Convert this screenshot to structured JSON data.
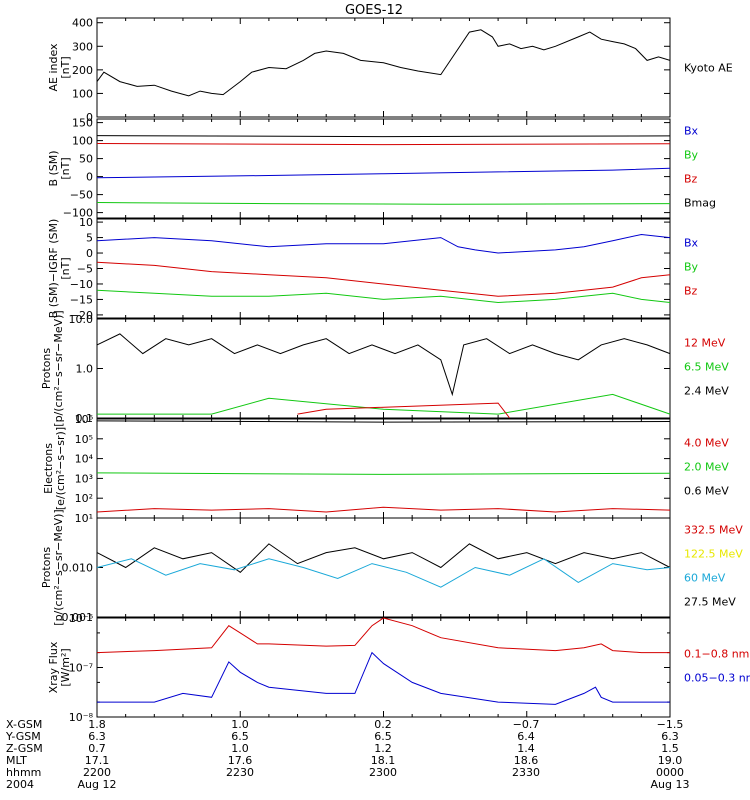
{
  "title": "GOES-12",
  "colors": {
    "black": "#000000",
    "red": "#d40000",
    "green": "#12c812",
    "blue": "#0000d0",
    "cyan": "#1aa8d8",
    "yellow": "#e8e800"
  },
  "chart_data": [
    {
      "type": "line",
      "ylabel": "AE index\n[nT]",
      "ylim": [
        0,
        420
      ],
      "scale": "linear",
      "yticks": [
        0,
        100,
        200,
        300,
        400
      ],
      "ytick_labels": [
        "0",
        "100",
        "200",
        "300",
        "400"
      ],
      "legend": [
        {
          "name": "Kyoto AE",
          "color": "#000000"
        }
      ],
      "series": [
        {
          "name": "Kyoto AE",
          "color": "#000000",
          "x": [
            0,
            0.012,
            0.04,
            0.07,
            0.1,
            0.13,
            0.16,
            0.18,
            0.2,
            0.22,
            0.25,
            0.27,
            0.3,
            0.33,
            0.36,
            0.38,
            0.4,
            0.43,
            0.46,
            0.5,
            0.53,
            0.56,
            0.6,
            0.65,
            0.67,
            0.69,
            0.7,
            0.72,
            0.74,
            0.76,
            0.78,
            0.8,
            0.84,
            0.86,
            0.88,
            0.9,
            0.92,
            0.94,
            0.96,
            0.98,
            1
          ],
          "y": [
            150,
            190,
            150,
            130,
            135,
            110,
            90,
            110,
            100,
            95,
            150,
            190,
            210,
            205,
            240,
            270,
            280,
            270,
            240,
            230,
            210,
            195,
            180,
            360,
            370,
            340,
            300,
            310,
            290,
            300,
            285,
            300,
            340,
            360,
            330,
            320,
            310,
            290,
            240,
            255,
            240
          ]
        }
      ]
    },
    {
      "type": "line",
      "ylabel": "B (SM)\n[nT]",
      "ylim": [
        -115,
        160
      ],
      "scale": "linear",
      "yticks": [
        -100,
        -50,
        0,
        50,
        100,
        150
      ],
      "ytick_labels": [
        "−100",
        "−50",
        "0",
        "50",
        "100",
        "150"
      ],
      "legend": [
        {
          "name": "Bx",
          "color": "#0000d0"
        },
        {
          "name": "By",
          "color": "#12c812"
        },
        {
          "name": "Bz",
          "color": "#d40000"
        },
        {
          "name": "Bmag",
          "color": "#000000"
        }
      ],
      "series": [
        {
          "name": "Bmag",
          "color": "#000000",
          "x": [
            0,
            0.5,
            1
          ],
          "y": [
            114,
            111,
            113
          ]
        },
        {
          "name": "Bz",
          "color": "#d40000",
          "x": [
            0,
            0.5,
            1
          ],
          "y": [
            92,
            89,
            91
          ]
        },
        {
          "name": "Bx",
          "color": "#0000d0",
          "x": [
            0,
            0.1,
            0.3,
            0.5,
            0.7,
            0.9,
            1
          ],
          "y": [
            -3,
            -1,
            3,
            8,
            13,
            18,
            23
          ]
        },
        {
          "name": "By",
          "color": "#12c812",
          "x": [
            0,
            0.3,
            0.6,
            1
          ],
          "y": [
            -72,
            -75,
            -77,
            -75
          ]
        }
      ]
    },
    {
      "type": "line",
      "ylabel": "B (SM)−IGRF (SM)\n[nT]",
      "ylim": [
        -21,
        11
      ],
      "scale": "linear",
      "yticks": [
        -20,
        -15,
        -10,
        -5,
        0,
        5,
        10
      ],
      "ytick_labels": [
        "−20",
        "−15",
        "−10",
        "−5",
        "0",
        "5",
        "10"
      ],
      "legend": [
        {
          "name": "Bx",
          "color": "#0000d0"
        },
        {
          "name": "By",
          "color": "#12c812"
        },
        {
          "name": "Bz",
          "color": "#d40000"
        }
      ],
      "series": [
        {
          "name": "Bx",
          "color": "#0000d0",
          "x": [
            0,
            0.1,
            0.2,
            0.3,
            0.4,
            0.5,
            0.6,
            0.63,
            0.66,
            0.7,
            0.8,
            0.85,
            0.9,
            0.95,
            1
          ],
          "y": [
            4,
            5,
            4,
            2,
            3,
            3,
            5,
            2,
            1,
            0,
            1,
            2,
            4,
            6,
            5
          ]
        },
        {
          "name": "Bz",
          "color": "#d40000",
          "x": [
            0,
            0.1,
            0.2,
            0.3,
            0.4,
            0.5,
            0.6,
            0.7,
            0.8,
            0.85,
            0.9,
            0.95,
            1
          ],
          "y": [
            -3,
            -4,
            -6,
            -7,
            -8,
            -10,
            -12,
            -14,
            -13,
            -12,
            -11,
            -8,
            -7
          ]
        },
        {
          "name": "By",
          "color": "#12c812",
          "x": [
            0,
            0.1,
            0.2,
            0.3,
            0.4,
            0.5,
            0.6,
            0.7,
            0.8,
            0.85,
            0.9,
            0.95,
            1
          ],
          "y": [
            -12,
            -13,
            -14,
            -14,
            -13,
            -15,
            -14,
            -16,
            -15,
            -14,
            -13,
            -15,
            -16
          ]
        }
      ]
    },
    {
      "type": "line",
      "ylabel": "Protons\n[p/(cm²−s−sr−MeV)]",
      "ylim": [
        0.1,
        10
      ],
      "scale": "log",
      "yticks": [
        0.1,
        1,
        10
      ],
      "ytick_labels": [
        "0.1",
        "1.0",
        "10.0"
      ],
      "legend": [
        {
          "name": "12 MeV",
          "color": "#d40000"
        },
        {
          "name": "6.5 MeV",
          "color": "#12c812"
        },
        {
          "name": "2.4 MeV",
          "color": "#000000"
        }
      ],
      "series": [
        {
          "name": "2.4 MeV",
          "color": "#000000",
          "x": [
            0,
            0.04,
            0.08,
            0.12,
            0.16,
            0.2,
            0.24,
            0.28,
            0.32,
            0.36,
            0.4,
            0.44,
            0.48,
            0.52,
            0.56,
            0.6,
            0.62,
            0.64,
            0.68,
            0.72,
            0.76,
            0.8,
            0.84,
            0.88,
            0.92,
            0.96,
            1
          ],
          "y": [
            3,
            5,
            2,
            4,
            3,
            4,
            2,
            3,
            2,
            3,
            4,
            2,
            3,
            2,
            3,
            1.5,
            0.3,
            3,
            4,
            2,
            3,
            2,
            1.5,
            3,
            4,
            3,
            2
          ]
        },
        {
          "name": "6.5 MeV",
          "color": "#12c812",
          "x": [
            0,
            0.2,
            0.3,
            0.5,
            0.7,
            0.9,
            1
          ],
          "y": [
            0.12,
            0.12,
            0.25,
            0.15,
            0.12,
            0.3,
            0.12
          ]
        },
        {
          "name": "12 MeV",
          "color": "#d40000",
          "x": [
            0.35,
            0.4,
            0.7,
            0.72
          ],
          "y": [
            0.12,
            0.15,
            0.2,
            0.1
          ]
        }
      ]
    },
    {
      "type": "line",
      "ylabel": "Electrons\n[e/(cm²−s−sr)]",
      "ylim": [
        10,
        1000000
      ],
      "scale": "log",
      "yticks": [
        10,
        100,
        1000,
        10000,
        100000,
        1000000
      ],
      "ytick_labels": [
        "10¹",
        "10²",
        "10³",
        "10⁴",
        "10⁵",
        "10⁶"
      ],
      "legend": [
        {
          "name": "4.0 MeV",
          "color": "#d40000"
        },
        {
          "name": "2.0 MeV",
          "color": "#12c812"
        },
        {
          "name": "0.6 MeV",
          "color": "#000000"
        }
      ],
      "series": [
        {
          "name": "0.6 MeV",
          "color": "#000000",
          "x": [
            0,
            0.5,
            1
          ],
          "y": [
            800000,
            700000,
            750000
          ]
        },
        {
          "name": "2.0 MeV",
          "color": "#12c812",
          "x": [
            0,
            0.5,
            1
          ],
          "y": [
            1900,
            1600,
            1800
          ]
        },
        {
          "name": "4.0 MeV",
          "color": "#d40000",
          "x": [
            0,
            0.1,
            0.2,
            0.3,
            0.4,
            0.5,
            0.6,
            0.7,
            0.8,
            0.9,
            1
          ],
          "y": [
            20,
            30,
            25,
            30,
            20,
            35,
            25,
            30,
            20,
            30,
            25
          ]
        }
      ]
    },
    {
      "type": "line",
      "ylabel": "Protons\n[p/(cm²−s−sr−MeV)]",
      "ylim": [
        0.001,
        0.1
      ],
      "scale": "log",
      "yticks": [
        0.001,
        0.01
      ],
      "ytick_labels": [
        "0.001",
        "0.010"
      ],
      "legend": [
        {
          "name": "332.5 MeV",
          "color": "#d40000"
        },
        {
          "name": "122.5 MeV",
          "color": "#e8e800"
        },
        {
          "name": "60 MeV",
          "color": "#1aa8d8"
        },
        {
          "name": "27.5 MeV",
          "color": "#000000"
        }
      ],
      "series": [
        {
          "name": "27.5 MeV",
          "color": "#000000",
          "x": [
            0,
            0.05,
            0.1,
            0.15,
            0.2,
            0.25,
            0.3,
            0.35,
            0.4,
            0.45,
            0.5,
            0.55,
            0.6,
            0.65,
            0.7,
            0.75,
            0.8,
            0.85,
            0.9,
            0.95,
            1
          ],
          "y": [
            0.02,
            0.01,
            0.025,
            0.015,
            0.02,
            0.008,
            0.03,
            0.012,
            0.02,
            0.025,
            0.015,
            0.02,
            0.01,
            0.03,
            0.015,
            0.02,
            0.012,
            0.02,
            0.015,
            0.02,
            0.01
          ]
        },
        {
          "name": "60 MeV",
          "color": "#1aa8d8",
          "x": [
            0,
            0.06,
            0.12,
            0.18,
            0.24,
            0.3,
            0.36,
            0.42,
            0.48,
            0.54,
            0.6,
            0.66,
            0.72,
            0.78,
            0.84,
            0.9,
            0.96,
            1
          ],
          "y": [
            0.01,
            0.015,
            0.007,
            0.012,
            0.009,
            0.015,
            0.01,
            0.006,
            0.012,
            0.008,
            0.004,
            0.01,
            0.007,
            0.015,
            0.005,
            0.012,
            0.009,
            0.01
          ]
        }
      ]
    },
    {
      "type": "line",
      "ylabel": "Xray Flux\n[W/m²]",
      "ylim": [
        1e-08,
        1e-06
      ],
      "scale": "log",
      "yticks": [
        1e-08,
        1e-07,
        1e-06
      ],
      "ytick_labels": [
        "10⁻⁸",
        "10⁻⁷",
        "10⁻⁶"
      ],
      "minor_ticks": [
        2e-08,
        5e-08,
        2e-07,
        5e-07
      ],
      "legend": [
        {
          "name": "0.1−0.8 nm",
          "color": "#d40000"
        },
        {
          "name": "0.05−0.3 nm",
          "color": "#0000d0"
        }
      ],
      "series": [
        {
          "name": "0.1−0.8 nm",
          "color": "#d40000",
          "x": [
            0,
            0.1,
            0.2,
            0.23,
            0.25,
            0.28,
            0.3,
            0.4,
            0.45,
            0.48,
            0.5,
            0.55,
            0.6,
            0.7,
            0.8,
            0.85,
            0.88,
            0.9,
            0.95,
            1
          ],
          "y": [
            2e-07,
            2.2e-07,
            2.5e-07,
            7e-07,
            5e-07,
            3e-07,
            3e-07,
            2.7e-07,
            2.8e-07,
            7e-07,
            1e-06,
            7e-07,
            4e-07,
            2.5e-07,
            2.2e-07,
            2.5e-07,
            3e-07,
            2.2e-07,
            2e-07,
            2e-07
          ]
        },
        {
          "name": "0.05−0.3 nm",
          "color": "#0000d0",
          "x": [
            0,
            0.1,
            0.15,
            0.2,
            0.23,
            0.25,
            0.28,
            0.3,
            0.4,
            0.45,
            0.48,
            0.5,
            0.55,
            0.6,
            0.7,
            0.8,
            0.85,
            0.87,
            0.88,
            0.9,
            1
          ],
          "y": [
            2e-08,
            2e-08,
            3e-08,
            2.5e-08,
            1.3e-07,
            8e-08,
            5e-08,
            4e-08,
            3e-08,
            3e-08,
            2e-07,
            1.2e-07,
            5e-08,
            3e-08,
            2e-08,
            1.8e-08,
            3e-08,
            4e-08,
            2.5e-08,
            2e-08,
            2e-08
          ]
        }
      ]
    }
  ],
  "footer": {
    "rows": [
      {
        "label": "X-GSM",
        "values": [
          "1.8",
          "1.0",
          "0.2",
          "−0.7",
          "−1.5"
        ]
      },
      {
        "label": "Y-GSM",
        "values": [
          "6.3",
          "6.5",
          "6.5",
          "6.4",
          "6.3"
        ]
      },
      {
        "label": "Z-GSM",
        "values": [
          "0.7",
          "1.0",
          "1.2",
          "1.4",
          "1.5"
        ]
      },
      {
        "label": "MLT",
        "values": [
          "17.1",
          "17.6",
          "18.1",
          "18.6",
          "19.0"
        ]
      },
      {
        "label": "hhmm",
        "values": [
          "2200",
          "2230",
          "2300",
          "2330",
          "0000"
        ]
      },
      {
        "label": "2004",
        "values": [
          "Aug 12",
          "",
          "",
          "",
          "Aug 13"
        ]
      }
    ]
  }
}
